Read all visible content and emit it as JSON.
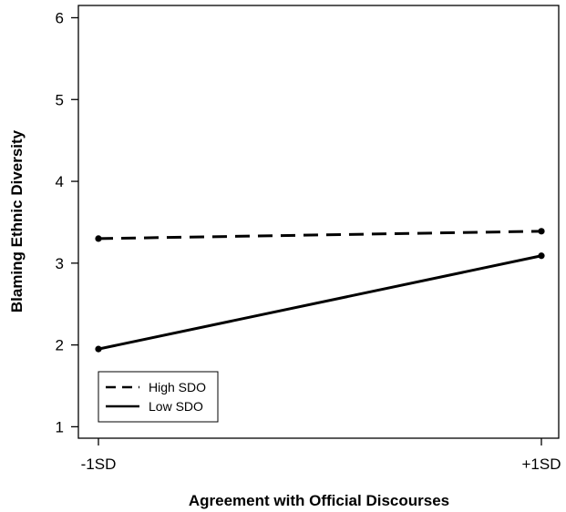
{
  "chart_data": {
    "type": "line",
    "categories": [
      "-1SD",
      "+1SD"
    ],
    "series": [
      {
        "name": "High SDO",
        "values": [
          3.3,
          3.39
        ],
        "line_style": "dashed"
      },
      {
        "name": "Low SDO",
        "values": [
          1.95,
          3.09
        ],
        "line_style": "solid"
      }
    ],
    "xlabel": "Agreement with Official Discourses",
    "ylabel": "Blaming Ethnic Diversity",
    "ylim": [
      0.86,
      6.15
    ],
    "yticks": [
      1,
      2,
      3,
      4,
      5,
      6
    ],
    "grid": false,
    "legend_position": "bottom-left"
  }
}
